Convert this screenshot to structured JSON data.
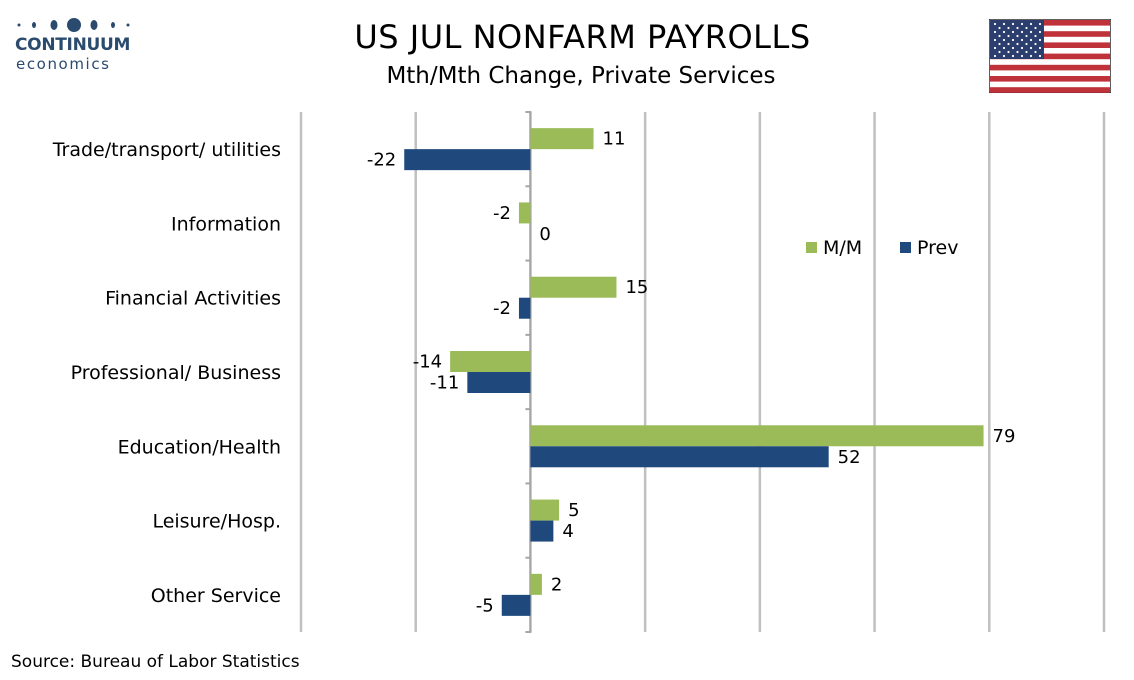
{
  "brand": {
    "line1": "CONTINUUM",
    "line2": "economics"
  },
  "title": "US JUL NONFARM PAYROLLS",
  "subtitle": "Mth/Mth Change, Private Services",
  "source": "Source: Bureau of Labor Statistics",
  "colors": {
    "mm": "#9bbb59",
    "prev": "#1f497d",
    "grid": "#c0c0c0",
    "brand": "#2a4a6e",
    "flag_red": "#c0323a",
    "flag_blue": "#2c3e6e"
  },
  "chart_data": {
    "type": "bar",
    "orientation": "horizontal",
    "categories": [
      "Trade/transport/ utilities",
      "Information",
      "Financial Activities",
      "Professional/ Business",
      "Education/Health",
      "Leisure/Hosp.",
      "Other Service"
    ],
    "series": [
      {
        "name": "M/M",
        "values": [
          11,
          -2,
          15,
          -14,
          79,
          5,
          2
        ]
      },
      {
        "name": "Prev",
        "values": [
          -22,
          0,
          -2,
          -11,
          52,
          4,
          -5
        ]
      }
    ],
    "xlim": [
      -40,
      100
    ],
    "grid": true,
    "legend_position": "right"
  }
}
